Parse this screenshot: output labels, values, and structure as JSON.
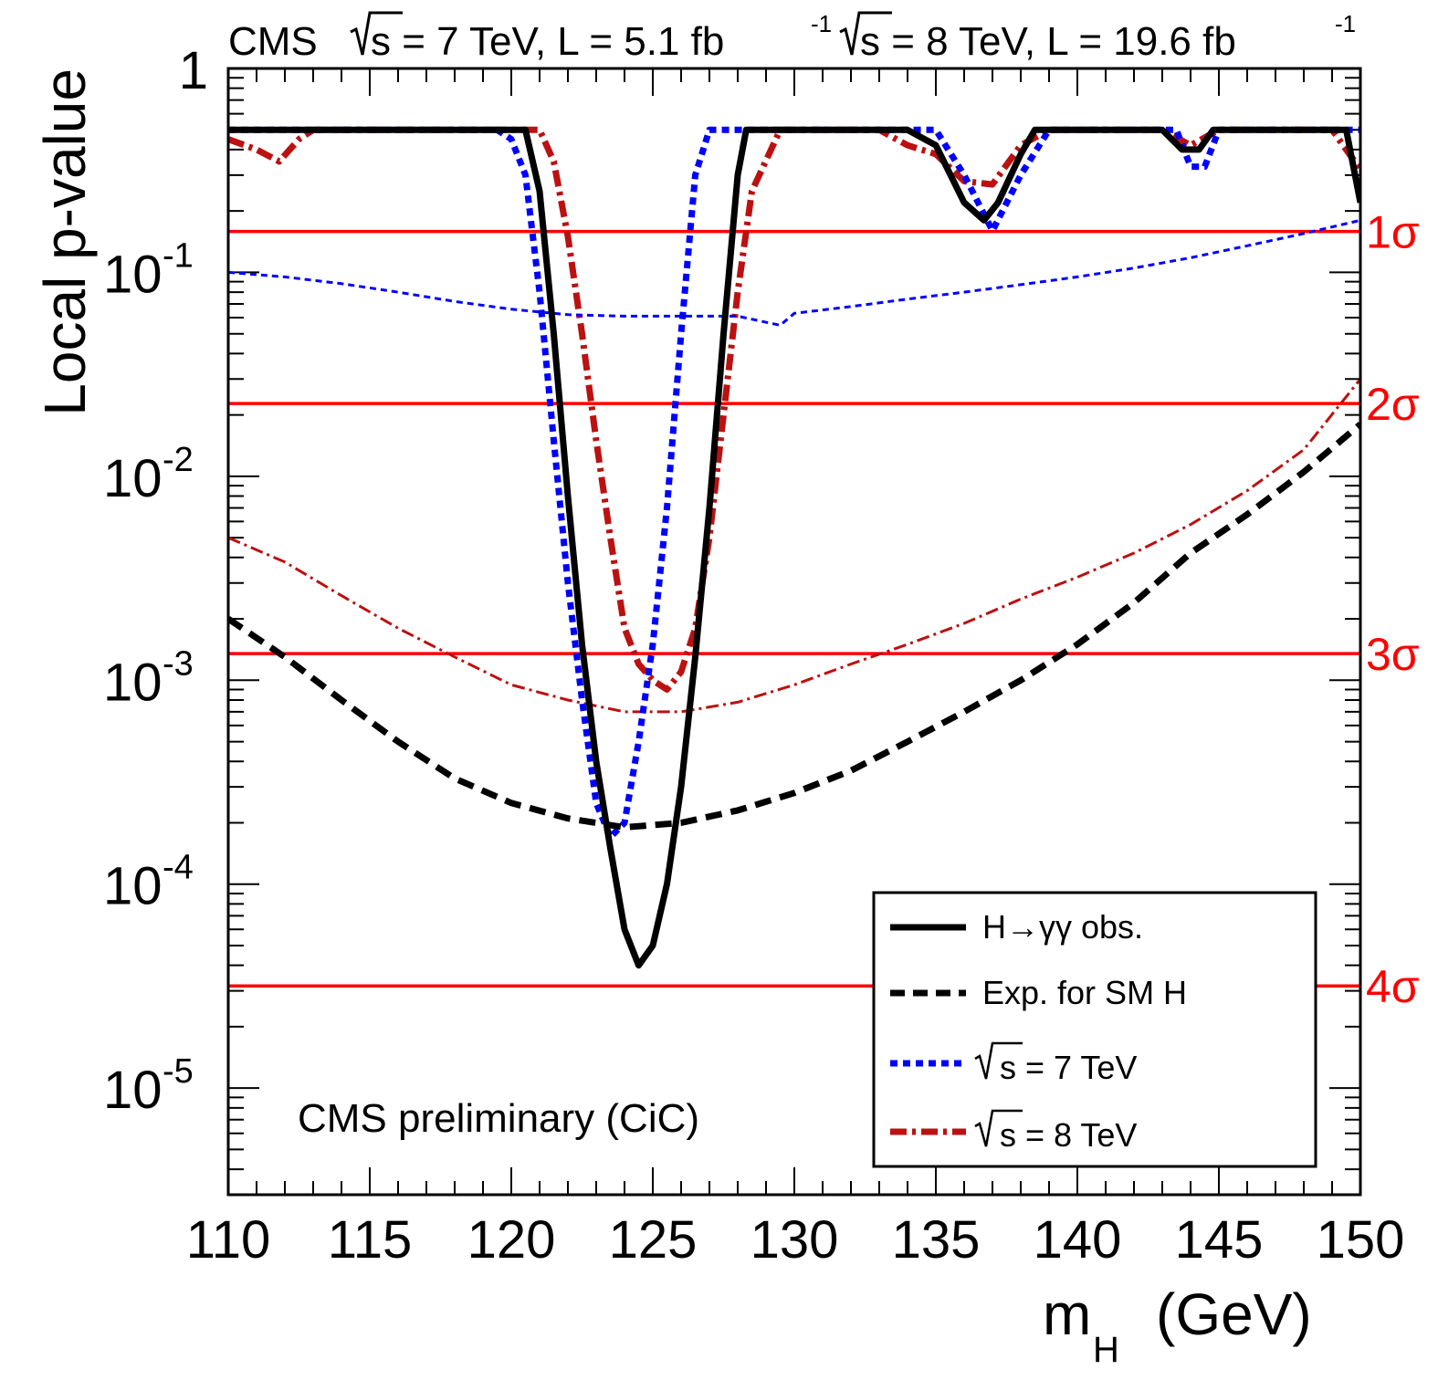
{
  "chart_data": {
    "type": "line",
    "header": {
      "experiment": "CMS",
      "sqrt_symbol": "√",
      "energy_7_text": "s = 7 TeV, L = 5.1 fb",
      "energy_8_text": "s = 8 TeV, L = 19.6 fb",
      "lumi_exponent": "-1"
    },
    "ylabel": "Local p-value",
    "xlabel_main": "m",
    "xlabel_sub": "H",
    "xlabel_unit": "(GeV)",
    "annotation": "CMS preliminary (CiC)",
    "xlim": [
      110,
      150
    ],
    "ylim": [
      3e-06,
      1
    ],
    "y_scale": "log",
    "x_ticks": [
      {
        "value": 110,
        "label": "110"
      },
      {
        "value": 115,
        "label": "115"
      },
      {
        "value": 120,
        "label": "120"
      },
      {
        "value": 125,
        "label": "125"
      },
      {
        "value": 130,
        "label": "130"
      },
      {
        "value": 135,
        "label": "135"
      },
      {
        "value": 140,
        "label": "140"
      },
      {
        "value": 145,
        "label": "145"
      },
      {
        "value": 150,
        "label": "150"
      }
    ],
    "y_ticks": [
      {
        "value": 1,
        "base": "1",
        "exp": ""
      },
      {
        "value": 0.1,
        "base": "10",
        "exp": "-1"
      },
      {
        "value": 0.01,
        "base": "10",
        "exp": "-2"
      },
      {
        "value": 0.001,
        "base": "10",
        "exp": "-3"
      },
      {
        "value": 0.0001,
        "base": "10",
        "exp": "-4"
      },
      {
        "value": 1e-05,
        "base": "10",
        "exp": "-5"
      }
    ],
    "sigma_lines": [
      {
        "label": "1σ",
        "value": 0.1587
      },
      {
        "label": "2σ",
        "value": 0.02275
      },
      {
        "label": "3σ",
        "value": 0.00135
      },
      {
        "label": "4σ",
        "value": 3.17e-05
      }
    ],
    "legend": {
      "entries": [
        {
          "label": "H→γγ obs.",
          "series": "obs"
        },
        {
          "label": "Exp. for SM H",
          "series": "exp"
        },
        {
          "label": "s = 7 TeV",
          "series": "obs7"
        },
        {
          "label": "s = 8 TeV",
          "series": "obs8"
        }
      ]
    },
    "series": [
      {
        "id": "obs",
        "color": "#000000",
        "style": "solid",
        "points": [
          [
            110,
            0.5
          ],
          [
            120.5,
            0.5
          ],
          [
            121,
            0.25
          ],
          [
            121.5,
            0.05
          ],
          [
            122,
            0.008
          ],
          [
            122.5,
            0.0015
          ],
          [
            123,
            0.0004
          ],
          [
            123.5,
            0.00015
          ],
          [
            124,
            6e-05
          ],
          [
            124.5,
            4e-05
          ],
          [
            125,
            5e-05
          ],
          [
            125.5,
            0.0001
          ],
          [
            126,
            0.0003
          ],
          [
            126.5,
            0.0013
          ],
          [
            127,
            0.007
          ],
          [
            127.5,
            0.05
          ],
          [
            128,
            0.3
          ],
          [
            128.3,
            0.5
          ],
          [
            134,
            0.5
          ],
          [
            135,
            0.42
          ],
          [
            136,
            0.22
          ],
          [
            136.7,
            0.18
          ],
          [
            137.2,
            0.22
          ],
          [
            138,
            0.38
          ],
          [
            138.5,
            0.5
          ],
          [
            143,
            0.5
          ],
          [
            143.7,
            0.4
          ],
          [
            144.3,
            0.4
          ],
          [
            144.8,
            0.5
          ],
          [
            149.5,
            0.5
          ],
          [
            150,
            0.22
          ]
        ]
      },
      {
        "id": "exp",
        "color": "#000000",
        "style": "dashed",
        "points": [
          [
            110,
            0.002
          ],
          [
            112,
            0.0013
          ],
          [
            114,
            0.0008
          ],
          [
            116,
            0.0005
          ],
          [
            118,
            0.00033
          ],
          [
            120,
            0.00025
          ],
          [
            122,
            0.00021
          ],
          [
            124,
            0.00019
          ],
          [
            126,
            0.0002
          ],
          [
            128,
            0.00023
          ],
          [
            130,
            0.00028
          ],
          [
            132,
            0.00036
          ],
          [
            134,
            0.0005
          ],
          [
            136,
            0.0007
          ],
          [
            138,
            0.001
          ],
          [
            140,
            0.0015
          ],
          [
            142,
            0.0024
          ],
          [
            144,
            0.0042
          ],
          [
            146,
            0.0065
          ],
          [
            148,
            0.0105
          ],
          [
            150,
            0.018
          ]
        ]
      },
      {
        "id": "obs7",
        "color": "#0000ff",
        "style": "dotted-thick",
        "points": [
          [
            110,
            0.1
          ],
          [
            112,
            0.095
          ],
          [
            114,
            0.088
          ],
          [
            116,
            0.08
          ],
          [
            118,
            0.072
          ],
          [
            120,
            0.066
          ],
          [
            122,
            0.062
          ],
          [
            124,
            0.061
          ],
          [
            126,
            0.061
          ],
          [
            128,
            0.061
          ],
          [
            129.5,
            0.055
          ],
          [
            130,
            0.063
          ],
          [
            132,
            0.068
          ],
          [
            134,
            0.074
          ],
          [
            136,
            0.08
          ],
          [
            138,
            0.087
          ],
          [
            140,
            0.095
          ],
          [
            142,
            0.105
          ],
          [
            144,
            0.118
          ],
          [
            146,
            0.135
          ],
          [
            148,
            0.155
          ],
          [
            150,
            0.18
          ]
        ],
        "points_obs": [
          [
            110,
            0.5
          ],
          [
            119.5,
            0.5
          ],
          [
            120,
            0.45
          ],
          [
            120.5,
            0.3
          ],
          [
            121,
            0.08
          ],
          [
            121.5,
            0.015
          ],
          [
            122,
            0.003
          ],
          [
            122.5,
            0.0008
          ],
          [
            123,
            0.00025
          ],
          [
            123.5,
            0.00017
          ],
          [
            124,
            0.0002
          ],
          [
            124.5,
            0.0005
          ],
          [
            125,
            0.0015
          ],
          [
            125.5,
            0.007
          ],
          [
            126,
            0.05
          ],
          [
            126.5,
            0.3
          ],
          [
            127,
            0.5
          ],
          [
            135,
            0.5
          ],
          [
            136,
            0.3
          ],
          [
            137,
            0.16
          ],
          [
            138,
            0.3
          ],
          [
            139,
            0.5
          ],
          [
            143.5,
            0.5
          ],
          [
            144,
            0.33
          ],
          [
            144.5,
            0.33
          ],
          [
            145,
            0.5
          ],
          [
            150,
            0.5
          ]
        ]
      },
      {
        "id": "obs8",
        "color": "#bb1111",
        "style": "dashdot",
        "points": [
          [
            110,
            0.005
          ],
          [
            112,
            0.0038
          ],
          [
            114,
            0.0026
          ],
          [
            116,
            0.0018
          ],
          [
            118,
            0.0013
          ],
          [
            120,
            0.00095
          ],
          [
            122,
            0.0008
          ],
          [
            124,
            0.0007
          ],
          [
            126,
            0.0007
          ],
          [
            128,
            0.00078
          ],
          [
            130,
            0.00095
          ],
          [
            132,
            0.0012
          ],
          [
            134,
            0.0015
          ],
          [
            136,
            0.0019
          ],
          [
            138,
            0.0025
          ],
          [
            140,
            0.0032
          ],
          [
            142,
            0.0042
          ],
          [
            144,
            0.0058
          ],
          [
            146,
            0.0085
          ],
          [
            148,
            0.0135
          ],
          [
            150,
            0.03
          ]
        ],
        "points_obs": [
          [
            110,
            0.45
          ],
          [
            111,
            0.4
          ],
          [
            111.8,
            0.35
          ],
          [
            112.5,
            0.45
          ],
          [
            113,
            0.5
          ],
          [
            121,
            0.5
          ],
          [
            121.5,
            0.35
          ],
          [
            122,
            0.15
          ],
          [
            122.5,
            0.05
          ],
          [
            123,
            0.015
          ],
          [
            123.5,
            0.005
          ],
          [
            124,
            0.0018
          ],
          [
            124.5,
            0.0012
          ],
          [
            125,
            0.001
          ],
          [
            125.5,
            0.0009
          ],
          [
            126,
            0.0011
          ],
          [
            126.5,
            0.0018
          ],
          [
            127,
            0.005
          ],
          [
            127.5,
            0.02
          ],
          [
            128,
            0.08
          ],
          [
            128.5,
            0.25
          ],
          [
            129.5,
            0.5
          ],
          [
            133,
            0.5
          ],
          [
            134,
            0.42
          ],
          [
            135,
            0.38
          ],
          [
            136,
            0.28
          ],
          [
            137,
            0.27
          ],
          [
            138,
            0.42
          ],
          [
            139,
            0.5
          ],
          [
            143,
            0.5
          ],
          [
            144,
            0.42
          ],
          [
            145,
            0.5
          ],
          [
            149,
            0.5
          ],
          [
            150,
            0.32
          ]
        ]
      }
    ]
  }
}
